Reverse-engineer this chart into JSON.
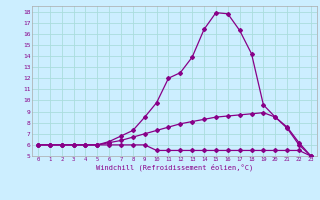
{
  "xlabel": "Windchill (Refroidissement éolien,°C)",
  "bg_color": "#cceeff",
  "grid_color": "#aadddd",
  "line_color": "#880088",
  "spine_color": "#aaaaaa",
  "xlim": [
    -0.5,
    23.5
  ],
  "ylim": [
    5,
    18.5
  ],
  "xticks": [
    0,
    1,
    2,
    3,
    4,
    5,
    6,
    7,
    8,
    9,
    10,
    11,
    12,
    13,
    14,
    15,
    16,
    17,
    18,
    19,
    20,
    21,
    22,
    23
  ],
  "yticks": [
    5,
    6,
    7,
    8,
    9,
    10,
    11,
    12,
    13,
    14,
    15,
    16,
    17,
    18
  ],
  "line1_x": [
    0,
    1,
    2,
    3,
    4,
    5,
    6,
    7,
    8,
    9,
    10,
    11,
    12,
    13,
    14,
    15,
    16,
    17,
    18,
    19,
    20,
    21,
    22,
    23
  ],
  "line1_y": [
    6,
    6,
    6,
    6,
    6,
    6,
    6,
    6,
    6,
    6,
    5.5,
    5.5,
    5.5,
    5.5,
    5.5,
    5.5,
    5.5,
    5.5,
    5.5,
    5.5,
    5.5,
    5.5,
    5.5,
    5.0
  ],
  "line2_x": [
    0,
    1,
    2,
    3,
    4,
    5,
    6,
    7,
    8,
    9,
    10,
    11,
    12,
    13,
    14,
    15,
    16,
    17,
    18,
    19,
    20,
    21,
    22,
    23
  ],
  "line2_y": [
    6,
    6,
    6,
    6,
    6,
    6,
    6.2,
    6.4,
    6.7,
    7.0,
    7.3,
    7.6,
    7.9,
    8.1,
    8.3,
    8.5,
    8.6,
    8.7,
    8.8,
    8.9,
    8.5,
    7.6,
    6.2,
    5.0
  ],
  "line3_x": [
    0,
    1,
    2,
    3,
    4,
    5,
    6,
    7,
    8,
    9,
    10,
    11,
    12,
    13,
    14,
    15,
    16,
    17,
    18,
    19,
    20,
    21,
    22,
    23
  ],
  "line3_y": [
    6,
    6,
    6,
    6,
    6,
    6,
    6.3,
    6.8,
    7.3,
    8.5,
    9.8,
    12.0,
    12.5,
    13.9,
    16.4,
    17.9,
    17.8,
    16.3,
    14.2,
    9.6,
    8.5,
    7.5,
    6.0,
    5.0
  ],
  "marker": "D",
  "marker_size": 2.0,
  "linewidth": 0.9
}
